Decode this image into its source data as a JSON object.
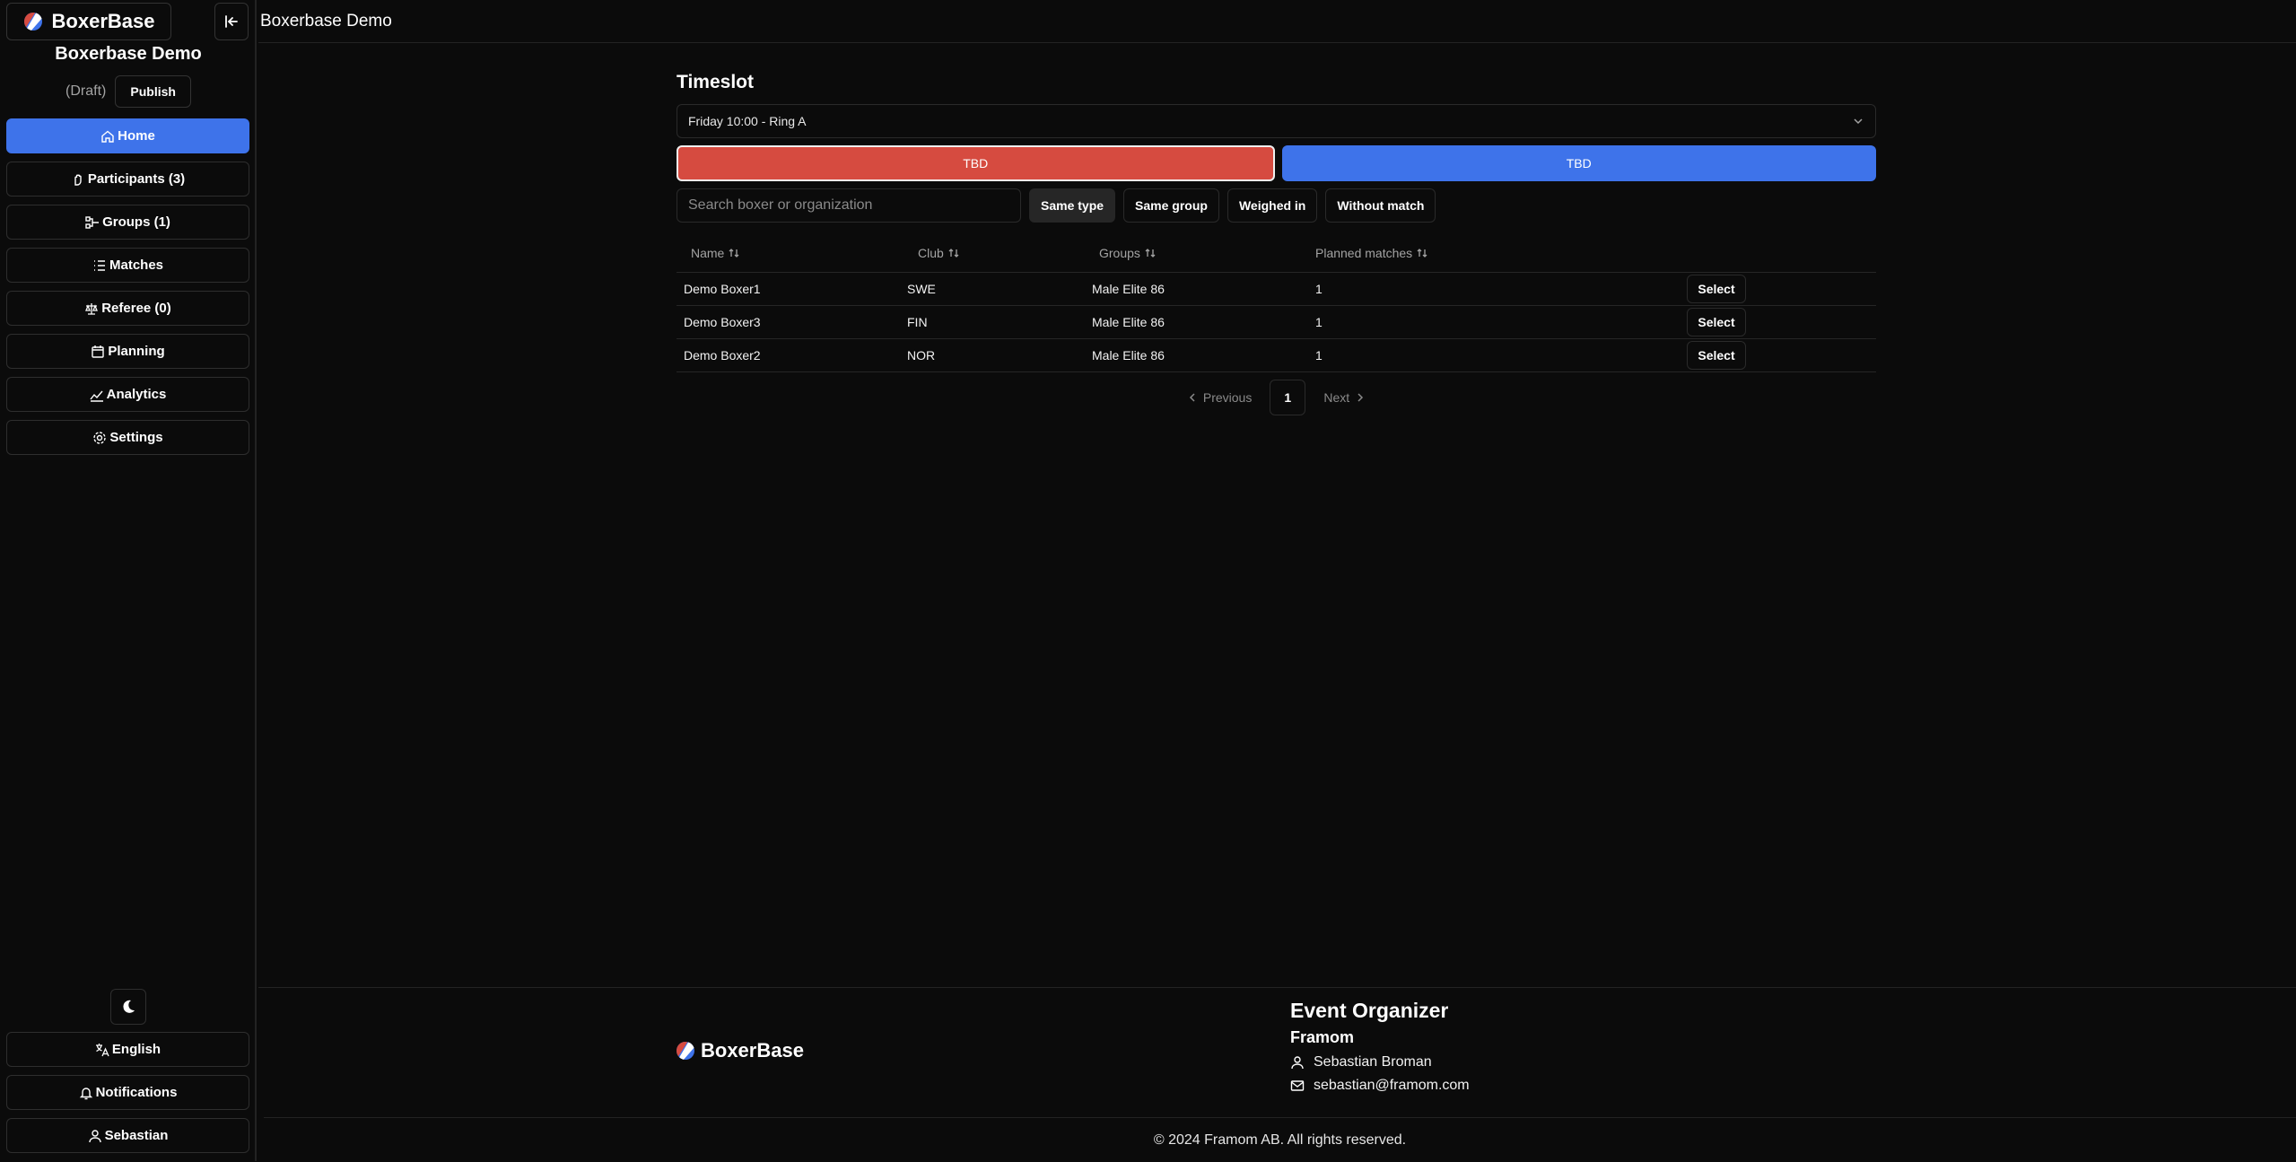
{
  "sidebar": {
    "brand": "BoxerBase",
    "event_title": "Boxerbase Demo",
    "draft_label": "(Draft)",
    "publish_label": "Publish",
    "nav": [
      {
        "label": "Home",
        "icon": "home-icon"
      },
      {
        "label": "Participants (3)",
        "icon": "hand-icon"
      },
      {
        "label": "Groups (1)",
        "icon": "groups-icon"
      },
      {
        "label": "Matches",
        "icon": "list-icon"
      },
      {
        "label": "Referee (0)",
        "icon": "scale-icon"
      },
      {
        "label": "Planning",
        "icon": "calendar-icon"
      },
      {
        "label": "Analytics",
        "icon": "chart-icon"
      },
      {
        "label": "Settings",
        "icon": "gear-icon"
      }
    ],
    "bottom": [
      {
        "label": "English",
        "icon": "language-icon"
      },
      {
        "label": "Notifications",
        "icon": "bell-icon"
      },
      {
        "label": "Sebastian",
        "icon": "user-icon"
      }
    ]
  },
  "header": {
    "title": "Boxerbase Demo"
  },
  "main": {
    "section_title": "Timeslot",
    "timeslot_value": "Friday 10:00 - Ring A",
    "red_corner": "TBD",
    "blue_corner": "TBD",
    "search_placeholder": "Search boxer or organization",
    "filters": [
      "Same type",
      "Same group",
      "Weighed in",
      "Without match"
    ],
    "columns": [
      "Name",
      "Club",
      "Groups",
      "Planned matches"
    ],
    "rows": [
      {
        "name": "Demo Boxer1",
        "club": "SWE",
        "group": "Male Elite 86",
        "planned": "1",
        "action": "Select"
      },
      {
        "name": "Demo Boxer3",
        "club": "FIN",
        "group": "Male Elite 86",
        "planned": "1",
        "action": "Select"
      },
      {
        "name": "Demo Boxer2",
        "club": "NOR",
        "group": "Male Elite 86",
        "planned": "1",
        "action": "Select"
      }
    ],
    "pagination": {
      "previous": "Previous",
      "page": "1",
      "next": "Next"
    }
  },
  "footer": {
    "brand": "BoxerBase",
    "title": "Event Organizer",
    "org": "Framom",
    "contact_name": "Sebastian Broman",
    "contact_email": "sebastian@framom.com",
    "copyright": "© 2024 Framom AB. All rights reserved."
  },
  "colors": {
    "accent": "#3e73ea",
    "red_corner": "#d64b40",
    "background": "#0b0b0b"
  }
}
